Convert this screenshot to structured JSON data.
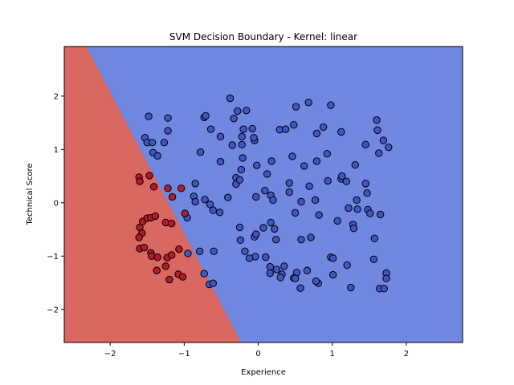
{
  "chart_data": {
    "type": "scatter",
    "title": "SVM Decision Boundary - Kernel: linear",
    "xlabel": "Experience",
    "ylabel": "Technical Score",
    "xlim": [
      -2.62,
      2.76
    ],
    "ylim": [
      -2.62,
      2.93
    ],
    "xticks": [
      -2,
      -1,
      0,
      1,
      2
    ],
    "yticks": [
      -2,
      -1,
      0,
      1,
      2
    ],
    "xtick_labels": [
      "−2",
      "−1",
      "0",
      "1",
      "2"
    ],
    "ytick_labels": [
      "−2",
      "−1",
      "0",
      "1",
      "2"
    ],
    "grid": false,
    "legend": "none",
    "decision_boundary": {
      "points": [
        [
          -2.32,
          2.93
        ],
        [
          -0.23,
          -2.62
        ]
      ]
    },
    "colors": {
      "region_positive": "#7088e0",
      "region_negative": "#d86860",
      "point_positive": "#4155c5",
      "point_negative": "#b41a2b",
      "edge": "#000000"
    },
    "series": [
      {
        "class": "positive",
        "points": [
          [
            -1.48,
            1.62
          ],
          [
            -1.22,
            1.59
          ],
          [
            -0.38,
            1.96
          ],
          [
            -0.28,
            1.72
          ],
          [
            -0.16,
            1.73
          ],
          [
            -0.73,
            1.6
          ],
          [
            -0.71,
            1.63
          ],
          [
            -0.64,
            1.38
          ],
          [
            -0.33,
            1.58
          ],
          [
            -0.2,
            1.38
          ],
          [
            -0.08,
            1.39
          ],
          [
            -0.05,
            1.17
          ],
          [
            0.29,
            1.37
          ],
          [
            0.37,
            1.38
          ],
          [
            0.48,
            1.46
          ],
          [
            0.51,
            1.8
          ],
          [
            0.68,
            1.88
          ],
          [
            0.79,
            1.3
          ],
          [
            0.88,
            1.42
          ],
          [
            0.98,
            1.83
          ],
          [
            1.12,
            1.33
          ],
          [
            1.6,
            1.55
          ],
          [
            1.61,
            1.36
          ],
          [
            1.69,
            1.17
          ],
          [
            1.76,
            1.04
          ],
          [
            -1.53,
            1.22
          ],
          [
            -1.5,
            1.13
          ],
          [
            -1.43,
            1.13
          ],
          [
            -1.42,
            0.94
          ],
          [
            -1.36,
            0.88
          ],
          [
            -1.27,
            1.13
          ],
          [
            -1.22,
            1.35
          ],
          [
            -0.78,
            0.95
          ],
          [
            -0.51,
            1.24
          ],
          [
            -0.35,
            1.08
          ],
          [
            -0.22,
            1.09
          ],
          [
            -0.22,
            1.24
          ],
          [
            -0.06,
            1.22
          ],
          [
            0.46,
            0.87
          ],
          [
            0.93,
            0.92
          ],
          [
            1.45,
            1.09
          ],
          [
            1.63,
            0.93
          ],
          [
            -0.85,
            0.36
          ],
          [
            -0.51,
            0.77
          ],
          [
            -0.3,
            0.35
          ],
          [
            -0.3,
            0.47
          ],
          [
            -0.25,
            0.43
          ],
          [
            -0.23,
            0.62
          ],
          [
            -0.21,
            0.84
          ],
          [
            -0.02,
            0.7
          ],
          [
            0.12,
            0.54
          ],
          [
            0.18,
            0.78
          ],
          [
            0.42,
            0.37
          ],
          [
            0.62,
            0.69
          ],
          [
            0.79,
            0.78
          ],
          [
            0.94,
            0.41
          ],
          [
            1.12,
            0.45
          ],
          [
            1.13,
            0.5
          ],
          [
            1.19,
            0.4
          ],
          [
            1.31,
            0.71
          ],
          [
            1.45,
            0.36
          ],
          [
            -0.87,
            0.12
          ],
          [
            -0.85,
            0.02
          ],
          [
            -0.72,
            0.06
          ],
          [
            -0.65,
            -0.03
          ],
          [
            -0.61,
            -0.14
          ],
          [
            -0.52,
            -0.18
          ],
          [
            -0.41,
            0.1
          ],
          [
            -0.03,
            0.11
          ],
          [
            0.09,
            0.23
          ],
          [
            0.17,
            0.14
          ],
          [
            0.2,
            0.05
          ],
          [
            0.42,
            0.2
          ],
          [
            0.58,
            0.02
          ],
          [
            0.69,
            0.31
          ],
          [
            0.77,
            0.05
          ],
          [
            0.82,
            -0.23
          ],
          [
            1.22,
            -0.1
          ],
          [
            1.33,
            0.05
          ],
          [
            1.34,
            -0.12
          ],
          [
            1.47,
            0.18
          ],
          [
            1.48,
            -0.13
          ],
          [
            1.51,
            -0.2
          ],
          [
            1.65,
            -0.22
          ],
          [
            1.07,
            -0.34
          ],
          [
            1.28,
            -0.41
          ],
          [
            1.29,
            -0.48
          ],
          [
            0.5,
            -0.19
          ],
          [
            0.17,
            -0.37
          ],
          [
            -0.25,
            -0.46
          ],
          [
            -0.24,
            -0.7
          ],
          [
            -0.05,
            -0.64
          ],
          [
            -0.03,
            -0.59
          ],
          [
            0.07,
            -0.47
          ],
          [
            0.22,
            -0.49
          ],
          [
            0.24,
            -0.69
          ],
          [
            0.58,
            -0.69
          ],
          [
            0.71,
            -0.65
          ],
          [
            -0.79,
            -0.91
          ],
          [
            -0.6,
            -0.91
          ],
          [
            -0.18,
            -0.91
          ],
          [
            -0.04,
            -1.01
          ],
          [
            -0.12,
            -1.04
          ],
          [
            0.1,
            -1.02
          ],
          [
            0.16,
            -1.2
          ],
          [
            0.16,
            -1.32
          ],
          [
            0.25,
            -1.25
          ],
          [
            0.35,
            -1.19
          ],
          [
            0.32,
            -1.34
          ],
          [
            0.3,
            -1.4
          ],
          [
            0.52,
            -1.31
          ],
          [
            0.48,
            -1.41
          ],
          [
            0.66,
            -1.27
          ],
          [
            0.81,
            -1.51
          ],
          [
            0.78,
            -1.47
          ],
          [
            0.98,
            -1.02
          ],
          [
            1.01,
            -1.04
          ],
          [
            1.01,
            -1.35
          ],
          [
            1.2,
            -1.17
          ],
          [
            1.56,
            -1.06
          ],
          [
            1.57,
            -0.67
          ],
          [
            1.73,
            -1.32
          ],
          [
            1.73,
            -1.42
          ],
          [
            0.57,
            -1.6
          ],
          [
            1.25,
            -1.59
          ],
          [
            1.64,
            -1.61
          ],
          [
            1.7,
            -1.61
          ],
          [
            -0.66,
            -1.53
          ],
          [
            -0.73,
            -1.33
          ],
          [
            -0.61,
            -1.51
          ],
          [
            -0.95,
            -0.95
          ],
          [
            -0.96,
            -0.28
          ],
          [
            0.5,
            -1.42
          ]
        ]
      },
      {
        "class": "negative",
        "points": [
          [
            -1.61,
            0.48
          ],
          [
            -1.6,
            0.4
          ],
          [
            -1.47,
            0.51
          ],
          [
            -1.41,
            0.3
          ],
          [
            -1.22,
            0.27
          ],
          [
            -1.16,
            0.11
          ],
          [
            -1.04,
            0.27
          ],
          [
            -1.56,
            -0.35
          ],
          [
            -1.5,
            -0.29
          ],
          [
            -1.45,
            -0.28
          ],
          [
            -1.39,
            -0.25
          ],
          [
            -1.25,
            -0.37
          ],
          [
            -1.17,
            -0.39
          ],
          [
            -0.99,
            -0.2
          ],
          [
            -1.6,
            -0.46
          ],
          [
            -1.57,
            -0.57
          ],
          [
            -1.61,
            -0.65
          ],
          [
            -1.6,
            -0.86
          ],
          [
            -1.54,
            -0.84
          ],
          [
            -1.45,
            -0.94
          ],
          [
            -1.44,
            -1.0
          ],
          [
            -1.36,
            -1.02
          ],
          [
            -1.23,
            -1.03
          ],
          [
            -1.17,
            -0.98
          ],
          [
            -1.07,
            -0.87
          ],
          [
            -1.37,
            -1.27
          ],
          [
            -1.25,
            -1.19
          ],
          [
            -1.2,
            -1.44
          ],
          [
            -1.08,
            -1.34
          ],
          [
            -1.02,
            -1.39
          ]
        ]
      }
    ]
  }
}
